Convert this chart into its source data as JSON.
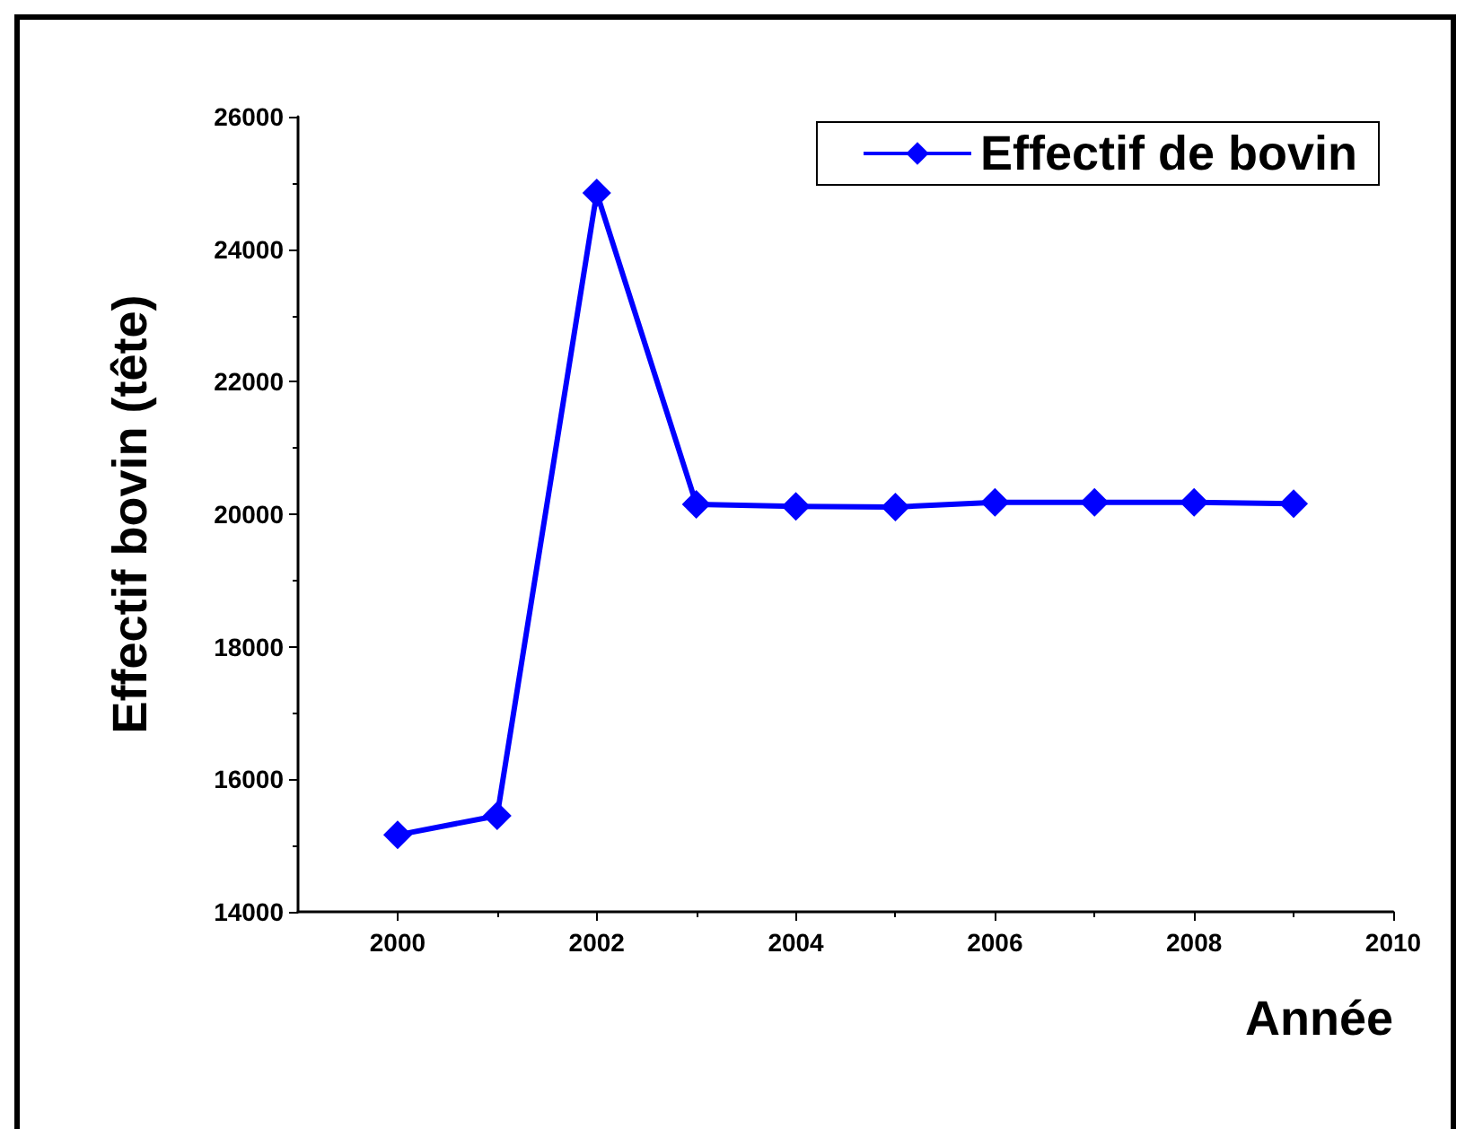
{
  "chart_data": {
    "type": "line",
    "xlabel": "Année",
    "ylabel": "Effectif bovin (tête)",
    "x": [
      2000,
      2001,
      2002,
      2003,
      2004,
      2005,
      2006,
      2007,
      2008,
      2009
    ],
    "series": [
      {
        "name": "Effectif de bovin",
        "color": "#0000ff",
        "values": [
          15160,
          15450,
          24850,
          20150,
          20120,
          20110,
          20180,
          20180,
          20180,
          20160
        ]
      }
    ],
    "xlim": [
      1999,
      2010
    ],
    "xticks": [
      2000,
      2002,
      2004,
      2006,
      2008,
      2010
    ],
    "ylim": [
      14000,
      26000
    ],
    "yticks": [
      14000,
      16000,
      18000,
      20000,
      22000,
      24000,
      26000
    ],
    "legend": "top right",
    "marker": "diamond",
    "line_style": "solid",
    "grid": false
  }
}
